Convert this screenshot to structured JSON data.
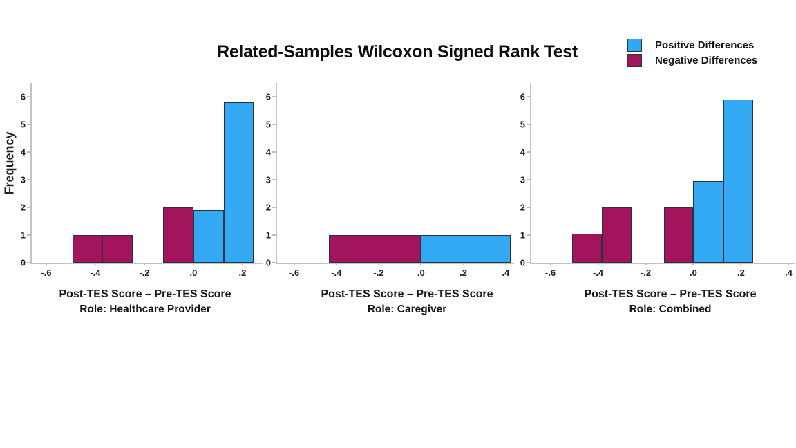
{
  "title": "Related-Samples Wilcoxon Signed Rank Test",
  "ylabel": "Frequency",
  "legend": {
    "items": [
      {
        "label": "Positive Differences",
        "color": "#33A9F4"
      },
      {
        "label": "Negative Differences",
        "color": "#A2155C"
      }
    ]
  },
  "colors": {
    "positive": "#33A9F4",
    "negative": "#A2155C",
    "bar_border": "#263240",
    "axis_line": "#c3c3c3"
  },
  "chart_data": [
    {
      "type": "bar",
      "subtype": "histogram",
      "xlabel_line1": "Post-TES Score – Pre-TES Score",
      "xlabel_line2": "Role: Healthcare Provider",
      "ylabel": "Frequency",
      "xlim": [
        -0.659,
        0.282
      ],
      "ylim": [
        0,
        6.5
      ],
      "xticks": [
        -0.6,
        -0.4,
        -0.2,
        0.0,
        0.2
      ],
      "xtick_labels": [
        "-.6",
        "-.4",
        "-.2",
        ".0",
        ".2"
      ],
      "yticks": [
        0,
        1,
        2,
        3,
        4,
        5,
        6
      ],
      "grid": false,
      "series": [
        {
          "name": "Negative Differences",
          "color": "#A2155C",
          "bars": [
            {
              "from": -0.493,
              "to": -0.371,
              "freq": 1
            },
            {
              "from": -0.371,
              "to": -0.248,
              "freq": 1
            },
            {
              "from": -0.123,
              "to": 0.0,
              "freq": 2
            }
          ]
        },
        {
          "name": "Positive Differences",
          "color": "#33A9F4",
          "bars": [
            {
              "from": 0.0,
              "to": 0.123,
              "freq": 1.9
            },
            {
              "from": 0.123,
              "to": 0.245,
              "freq": 5.8
            }
          ]
        }
      ]
    },
    {
      "type": "bar",
      "subtype": "histogram",
      "xlabel_line1": "Post-TES Score – Pre-TES Score",
      "xlabel_line2": "Role: Caregiver",
      "ylabel": "Frequency",
      "xlim": [
        -0.68,
        0.44
      ],
      "ylim": [
        0,
        6.5
      ],
      "xticks": [
        -0.6,
        -0.4,
        -0.2,
        0.0,
        0.2,
        0.4
      ],
      "xtick_labels": [
        "-.6",
        "-.4",
        "-.2",
        ".0",
        ".2",
        ".4"
      ],
      "yticks": [
        0,
        1,
        2,
        3,
        4,
        5,
        6
      ],
      "grid": false,
      "series": [
        {
          "name": "Negative Differences",
          "color": "#A2155C",
          "bars": [
            {
              "from": -0.435,
              "to": 0.0,
              "freq": 1
            }
          ]
        },
        {
          "name": "Positive Differences",
          "color": "#33A9F4",
          "bars": [
            {
              "from": 0.0,
              "to": 0.423,
              "freq": 1
            }
          ]
        }
      ]
    },
    {
      "type": "bar",
      "subtype": "histogram",
      "xlabel_line1": "Post-TES Score – Pre-TES Score",
      "xlabel_line2": "Role: Combined",
      "ylabel": "Frequency",
      "xlim": [
        -0.68,
        0.425
      ],
      "ylim": [
        0,
        6.5
      ],
      "xticks": [
        -0.6,
        -0.4,
        -0.2,
        0.0,
        0.2,
        0.4
      ],
      "xtick_labels": [
        "-.6",
        "-.4",
        "-.2",
        ".0",
        ".2",
        ".4"
      ],
      "yticks": [
        0,
        1,
        2,
        3,
        4,
        5,
        6
      ],
      "grid": false,
      "series": [
        {
          "name": "Negative Differences",
          "color": "#A2155C",
          "bars": [
            {
              "from": -0.51,
              "to": -0.385,
              "freq": 1.05
            },
            {
              "from": -0.385,
              "to": -0.259,
              "freq": 2
            },
            {
              "from": -0.124,
              "to": 0.0,
              "freq": 2
            }
          ]
        },
        {
          "name": "Positive Differences",
          "color": "#33A9F4",
          "bars": [
            {
              "from": 0.0,
              "to": 0.126,
              "freq": 2.95
            },
            {
              "from": 0.126,
              "to": 0.252,
              "freq": 5.9
            }
          ]
        }
      ]
    }
  ]
}
